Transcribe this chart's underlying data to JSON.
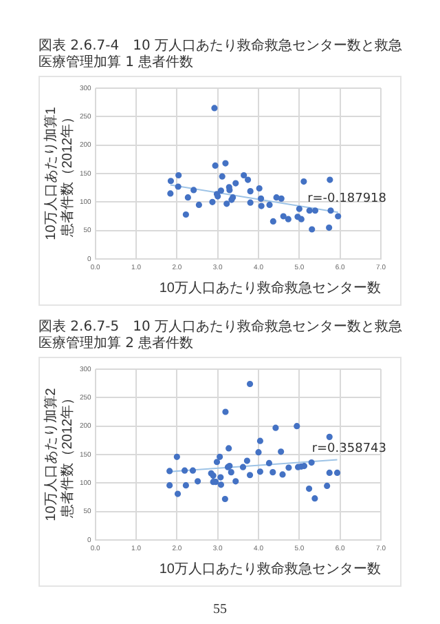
{
  "chart_data": [
    {
      "type": "scatter",
      "title": "図表 2.6.7-4　10 万人口あたり救命救急センター数と救急医療管理加算 1 患者件数",
      "xlabel": "10万人口あたり救命救急センター数",
      "ylabel": "10万人口あたり加算1患者件数（2012年）",
      "xlim": [
        0,
        7
      ],
      "xticks": [
        {
          "value": 0,
          "label": "0.0"
        },
        {
          "value": 1,
          "label": "1.0"
        },
        {
          "value": 2,
          "label": "2.0"
        },
        {
          "value": 3,
          "label": "3.0"
        },
        {
          "value": 4,
          "label": "4.0"
        },
        {
          "value": 5,
          "label": "5.0"
        },
        {
          "value": 6,
          "label": "6.0"
        },
        {
          "value": 7,
          "label": "7.0"
        }
      ],
      "ylim": [
        0,
        300
      ],
      "yticks": [
        0,
        50,
        100,
        150,
        200,
        250,
        300
      ],
      "grid": true,
      "legend": false,
      "annotations": [
        "r=-0.187918"
      ],
      "series": [
        {
          "marker": "circle",
          "color": "#4472c4",
          "x": [
            1.85,
            1.84,
            2.04,
            2.03,
            2.22,
            2.27,
            2.41,
            2.54,
            2.87,
            2.92,
            2.94,
            2.98,
            3.0,
            3.08,
            3.11,
            3.19,
            3.22,
            3.28,
            3.29,
            3.34,
            3.37,
            3.44,
            3.64,
            3.74,
            3.8,
            3.8,
            4.02,
            4.06,
            4.07,
            4.27,
            4.36,
            4.44,
            4.56,
            4.61,
            4.73,
            4.96,
            5.0,
            5.05,
            5.11,
            5.25,
            5.31,
            5.39,
            5.73,
            5.75,
            5.77,
            5.95
          ],
          "values": [
            137,
            115,
            147,
            127,
            78,
            108,
            121,
            95,
            100,
            265,
            164,
            114,
            110,
            120,
            145,
            168,
            97,
            126,
            121,
            104,
            108,
            133,
            147,
            139,
            119,
            99,
            124,
            106,
            93,
            95,
            66,
            108,
            106,
            75,
            70,
            74,
            88,
            70,
            136,
            85,
            52,
            85,
            55,
            139,
            85,
            75
          ]
        },
        {
          "type": "line",
          "marker": "none",
          "color": "#9dc3e6",
          "x": [
            1.84,
            5.95
          ],
          "values": [
            130,
            82
          ]
        }
      ]
    },
    {
      "type": "scatter",
      "title": "図表 2.6.7-5　10 万人口あたり救命救急センター数と救急医療管理加算 2 患者件数",
      "xlabel": "10万人口あたり救命救急センター数",
      "ylabel": "10万人口あたり加算2患者件数（2012年）",
      "xlim": [
        0,
        7
      ],
      "xticks": [
        {
          "value": 0,
          "label": "0.0"
        },
        {
          "value": 1,
          "label": "1.0"
        },
        {
          "value": 2,
          "label": "2.0"
        },
        {
          "value": 3,
          "label": "3.0"
        },
        {
          "value": 4,
          "label": "4.0"
        },
        {
          "value": 5,
          "label": "5.0"
        },
        {
          "value": 6,
          "label": "6.0"
        },
        {
          "value": 7,
          "label": "7.0"
        }
      ],
      "ylim": [
        0,
        300
      ],
      "yticks": [
        0,
        50,
        100,
        150,
        200,
        250,
        300
      ],
      "grid": true,
      "legend": false,
      "annotations": [
        "r=0.358743",
        "55"
      ],
      "series": [
        {
          "marker": "circle",
          "color": "#4472c4",
          "x": [
            1.82,
            1.82,
            2.0,
            2.02,
            2.19,
            2.22,
            2.39,
            2.51,
            2.84,
            2.89,
            2.89,
            2.95,
            2.98,
            3.05,
            3.07,
            3.08,
            3.18,
            3.19,
            3.25,
            3.27,
            3.29,
            3.33,
            3.44,
            3.62,
            3.72,
            3.79,
            3.79,
            4.0,
            4.04,
            4.04,
            4.26,
            4.35,
            4.42,
            4.55,
            4.59,
            4.74,
            4.94,
            4.97,
            5.05,
            5.12,
            5.24,
            5.3,
            5.38,
            5.68,
            5.74,
            5.74,
            5.93
          ],
          "values": [
            121,
            96,
            146,
            81,
            122,
            96,
            122,
            103,
            117,
            113,
            102,
            102,
            137,
            146,
            110,
            97,
            72,
            225,
            128,
            161,
            130,
            119,
            103,
            128,
            139,
            274,
            114,
            154,
            174,
            120,
            135,
            119,
            197,
            155,
            115,
            127,
            200,
            128,
            129,
            130,
            90,
            136,
            73,
            95,
            181,
            118,
            118
          ]
        },
        {
          "type": "line",
          "marker": "none",
          "color": "#9dc3e6",
          "x": [
            1.82,
            5.93
          ],
          "values": [
            120,
            141
          ]
        }
      ]
    }
  ]
}
